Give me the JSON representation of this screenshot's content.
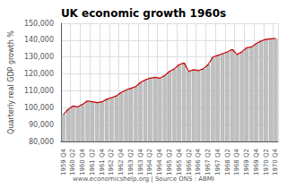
{
  "chart_data": {
    "type": "bar",
    "title": "UK economic growth 1960s",
    "ylabel": "Quarterly real GDP growth %",
    "footnote": "www.economicshelp.org | Source ONS : ABMI",
    "categories": [
      "1959 Q4",
      null,
      "1960 Q2",
      null,
      "1960 Q4",
      null,
      "1961 Q2",
      null,
      "1961 Q4",
      null,
      "1962 Q2",
      null,
      "1962 Q4",
      null,
      "1963 Q2",
      null,
      "1963 Q4",
      null,
      "1964 Q2",
      null,
      "1964 Q4",
      null,
      "1965 Q2",
      null,
      "1965 Q4",
      null,
      "1966 Q2",
      null,
      "1966 Q4",
      null,
      "1967 Q2",
      null,
      "1967 Q4",
      null,
      "1968 Q2",
      null,
      "1968 Q4",
      null,
      "1969 Q2",
      null,
      "1969 Q4",
      null,
      "1970 Q2",
      null,
      "1970 Q4"
    ],
    "series": [
      {
        "type": "bar",
        "color": "#c0c0c0",
        "values": [
          96000,
          99000,
          101000,
          100500,
          102000,
          104000,
          103500,
          103000,
          103500,
          105000,
          106000,
          107000,
          109000,
          110500,
          111500,
          112500,
          115000,
          116500,
          117500,
          118000,
          117500,
          119000,
          121500,
          123000,
          125500,
          126500,
          121500,
          122500,
          122000,
          123000,
          125500,
          130000,
          131000,
          132000,
          133000,
          134500,
          131500,
          133000,
          135500,
          136000,
          138000,
          139500,
          140500,
          140800,
          141000
        ]
      },
      {
        "type": "line",
        "color": "#cc0000",
        "values": [
          96000,
          99000,
          101000,
          100500,
          102000,
          104000,
          103500,
          103000,
          103500,
          105000,
          106000,
          107000,
          109000,
          110500,
          111500,
          112500,
          115000,
          116500,
          117500,
          118000,
          117500,
          119000,
          121500,
          123000,
          125500,
          126500,
          121500,
          122500,
          122000,
          123000,
          125500,
          130000,
          131000,
          132000,
          133000,
          134500,
          131500,
          133000,
          135500,
          136000,
          138000,
          139500,
          140500,
          140800,
          141000
        ]
      }
    ],
    "ylim": [
      80000,
      150000
    ],
    "yticks": [
      {
        "value": 80000,
        "label": "80,000"
      },
      {
        "value": 90000,
        "label": "90,000"
      },
      {
        "value": 100000,
        "label": "100,000"
      },
      {
        "value": 110000,
        "label": "110,000"
      },
      {
        "value": 120000,
        "label": "120,000"
      },
      {
        "value": 130000,
        "label": "130,000"
      },
      {
        "value": 140000,
        "label": "140,000"
      },
      {
        "value": 150000,
        "label": "150,000"
      }
    ],
    "grid": true
  }
}
